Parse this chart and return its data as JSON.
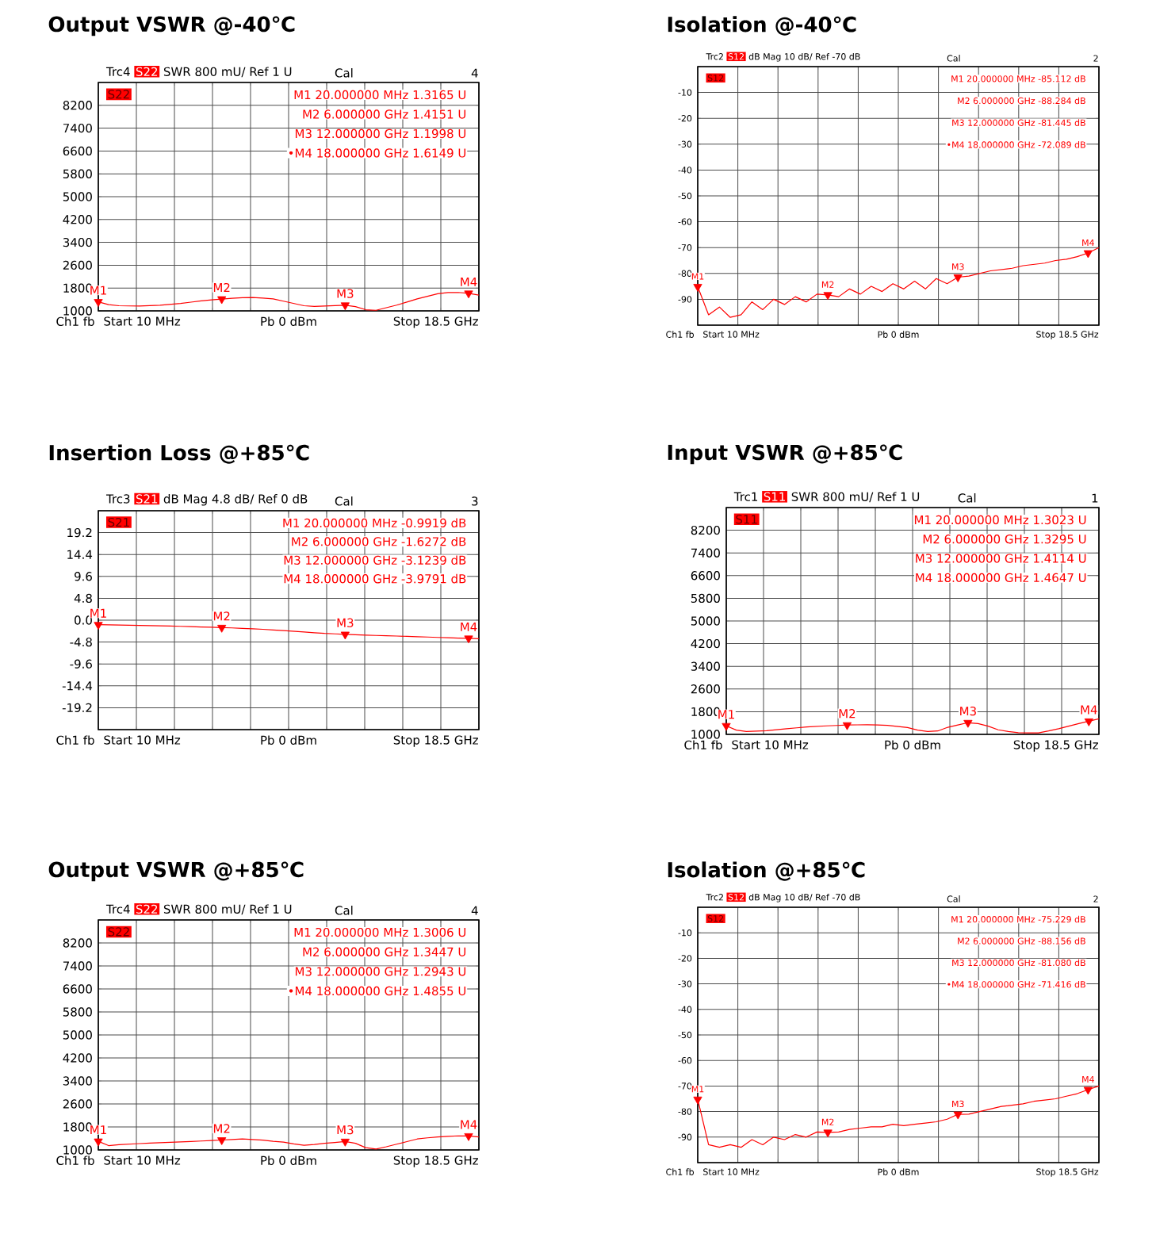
{
  "chart_data": [
    {
      "type": "line",
      "title": "Output VSWR @-40℃",
      "ylim": [
        1000,
        9000
      ],
      "grid": true,
      "categories": [
        null,
        null,
        null,
        null,
        null,
        null,
        null,
        null,
        null,
        null,
        null,
        null,
        null,
        null,
        null,
        null,
        null,
        null,
        null,
        null,
        null,
        null,
        null,
        null,
        null,
        null,
        null,
        null,
        null,
        null,
        null,
        null,
        null,
        null,
        null,
        null,
        null,
        null
      ],
      "yticks": [
        1000,
        1800,
        2600,
        3400,
        4200,
        5000,
        5800,
        6600,
        7400,
        8200,
        {
          "value": 9000,
          "label": null
        }
      ],
      "series": [
        {
          "color": "#ff0000",
          "values": [
            1316.5,
            1220,
            1180,
            1175,
            1170,
            1185,
            1200,
            1230,
            1260,
            1305,
            1350,
            1385,
            1415.1,
            1440,
            1460,
            1468,
            1450,
            1420,
            1340,
            1260,
            1180,
            1155,
            1170,
            1185,
            1199.8,
            1150,
            1040,
            1020,
            1110,
            1200,
            1310,
            1420,
            1510,
            1600,
            1640,
            1645,
            1614.9,
            1550
          ]
        },
        {
          "type": "scatter",
          "marker": "triangle",
          "color": "#ff0000",
          "values": [
            1316.5,
            null,
            null,
            null,
            null,
            null,
            null,
            null,
            null,
            null,
            null,
            null,
            1415.1,
            null,
            null,
            null,
            null,
            null,
            null,
            null,
            null,
            null,
            null,
            null,
            1199.8,
            null,
            null,
            null,
            null,
            null,
            null,
            null,
            null,
            null,
            null,
            null,
            1614.9,
            null
          ]
        }
      ],
      "annotations": [
        "Trc4",
        "S22",
        "SWR  800 mU/  Ref 1 U",
        "Cal",
        "4",
        "S22",
        "M1  20.000000 MHz  1.3165 U",
        "M2  6.000000 GHz  1.4151 U",
        "M3  12.000000 GHz  1.1998 U",
        "•M4  18.000000 GHz  1.6149 U",
        "Ch1  fb",
        "Start  10 MHz",
        "Pb  0 dBm",
        "Stop  18.5 GHz",
        "M1",
        "M2",
        "M3",
        "M4"
      ]
    },
    {
      "type": "line",
      "title": "Isolation @-40℃",
      "ylim": [
        -100,
        0
      ],
      "grid": true,
      "categories": [
        null,
        null,
        null,
        null,
        null,
        null,
        null,
        null,
        null,
        null,
        null,
        null,
        null,
        null,
        null,
        null,
        null,
        null,
        null,
        null,
        null,
        null,
        null,
        null,
        null,
        null,
        null,
        null,
        null,
        null,
        null,
        null,
        null,
        null,
        null,
        null,
        null,
        null
      ],
      "yticks": [
        {
          "value": -100,
          "label": null
        },
        -90,
        -80,
        -70,
        -60,
        -50,
        -40,
        -30,
        -20,
        -10,
        {
          "value": 0,
          "label": null
        }
      ],
      "series": [
        {
          "color": "#ff0000",
          "values": [
            -85.112,
            -96,
            -93,
            -97,
            -96,
            -91,
            -94,
            -90,
            -92,
            -89,
            -91,
            -88,
            -88.284,
            -89,
            -86,
            -88,
            -85,
            -87,
            -84,
            -86,
            -83,
            -86,
            -82,
            -84,
            -81.445,
            -81,
            -80,
            -79,
            -78.5,
            -78,
            -77,
            -76.5,
            -76,
            -75,
            -74.5,
            -73.5,
            -72.089,
            -70
          ]
        },
        {
          "type": "scatter",
          "marker": "triangle",
          "color": "#ff0000",
          "values": [
            -85.112,
            null,
            null,
            null,
            null,
            null,
            null,
            null,
            null,
            null,
            null,
            null,
            -88.284,
            null,
            null,
            null,
            null,
            null,
            null,
            null,
            null,
            null,
            null,
            null,
            -81.445,
            null,
            null,
            null,
            null,
            null,
            null,
            null,
            null,
            null,
            null,
            null,
            -72.089,
            null
          ]
        }
      ],
      "annotations": [
        "Trc2",
        "S12",
        "dB Mag  10 dB/  Ref -70 dB",
        "Cal",
        "2",
        "S12",
        "M1  20.000000 MHz  -85.112 dB",
        "M2  6.000000 GHz  -88.284 dB",
        "M3  12.000000 GHz  -81.445 dB",
        "•M4  18.000000 GHz  -72.089 dB",
        "Ch1  fb",
        "Start  10 MHz",
        "Pb  0 dBm",
        "Stop  18.5 GHz",
        "M1",
        "M2",
        "M3",
        "M4"
      ]
    },
    {
      "type": "line",
      "title": "Insertion Loss @+85℃",
      "ylim": [
        -24,
        24
      ],
      "grid": true,
      "categories": [
        null,
        null,
        null,
        null,
        null,
        null,
        null,
        null,
        null,
        null,
        null,
        null,
        null,
        null,
        null,
        null,
        null,
        null,
        null,
        null,
        null,
        null,
        null,
        null,
        null,
        null,
        null,
        null,
        null,
        null,
        null,
        null,
        null,
        null,
        null,
        null,
        null,
        null
      ],
      "yticks": [
        {
          "value": -24,
          "label": null
        },
        -19.2,
        -14.4,
        -9.6,
        -4.8,
        {
          "value": 0,
          "label": "0.0"
        },
        4.8,
        9.6,
        14.4,
        19.2,
        {
          "value": 24,
          "label": null
        }
      ],
      "series": [
        {
          "color": "#ff0000",
          "values": [
            -0.9919,
            -1.02,
            -1.05,
            -1.1,
            -1.15,
            -1.2,
            -1.25,
            -1.3,
            -1.35,
            -1.42,
            -1.5,
            -1.56,
            -1.6272,
            -1.7,
            -1.8,
            -1.9,
            -2.0,
            -2.15,
            -2.3,
            -2.45,
            -2.6,
            -2.75,
            -2.9,
            -3.0,
            -3.1239,
            -3.2,
            -3.3,
            -3.35,
            -3.4,
            -3.48,
            -3.55,
            -3.62,
            -3.7,
            -3.78,
            -3.85,
            -3.92,
            -3.9791,
            -4.05
          ]
        },
        {
          "type": "scatter",
          "marker": "triangle",
          "color": "#ff0000",
          "values": [
            -0.9919,
            null,
            null,
            null,
            null,
            null,
            null,
            null,
            null,
            null,
            null,
            null,
            -1.6272,
            null,
            null,
            null,
            null,
            null,
            null,
            null,
            null,
            null,
            null,
            null,
            -3.1239,
            null,
            null,
            null,
            null,
            null,
            null,
            null,
            null,
            null,
            null,
            null,
            -3.9791,
            null
          ]
        }
      ],
      "annotations": [
        "Trc3",
        "S21",
        "dB Mag  4.8 dB/  Ref 0 dB",
        "Cal",
        "3",
        "S21",
        "M1  20.000000 MHz  -0.9919 dB",
        "M2  6.000000 GHz  -1.6272 dB",
        "M3  12.000000 GHz  -3.1239 dB",
        "M4  18.000000 GHz  -3.9791 dB",
        "Ch1  fb",
        "Start  10 MHz",
        "Pb  0 dBm",
        "Stop  18.5 GHz",
        "M1",
        "M2",
        "M3",
        "M4"
      ]
    },
    {
      "type": "line",
      "title": "Input VSWR @+85℃",
      "ylim": [
        1000,
        9000
      ],
      "grid": true,
      "categories": [
        null,
        null,
        null,
        null,
        null,
        null,
        null,
        null,
        null,
        null,
        null,
        null,
        null,
        null,
        null,
        null,
        null,
        null,
        null,
        null,
        null,
        null,
        null,
        null,
        null,
        null,
        null,
        null,
        null,
        null,
        null,
        null,
        null,
        null,
        null,
        null,
        null,
        null
      ],
      "yticks": [
        1000,
        1800,
        2600,
        3400,
        4200,
        5000,
        5800,
        6600,
        7400,
        8200,
        {
          "value": 9000,
          "label": null
        }
      ],
      "series": [
        {
          "color": "#ff0000",
          "values": [
            1302.3,
            1150,
            1100,
            1115,
            1130,
            1165,
            1200,
            1230,
            1260,
            1280,
            1300,
            1315,
            1329.5,
            1335,
            1340,
            1330,
            1320,
            1280,
            1240,
            1150,
            1100,
            1120,
            1250,
            1330,
            1411.4,
            1380,
            1290,
            1160,
            1100,
            1060,
            1055,
            1050,
            1120,
            1200,
            1290,
            1380,
            1464.7,
            1550
          ]
        },
        {
          "type": "scatter",
          "marker": "triangle",
          "color": "#ff0000",
          "values": [
            1302.3,
            null,
            null,
            null,
            null,
            null,
            null,
            null,
            null,
            null,
            null,
            null,
            1329.5,
            null,
            null,
            null,
            null,
            null,
            null,
            null,
            null,
            null,
            null,
            null,
            1411.4,
            null,
            null,
            null,
            null,
            null,
            null,
            null,
            null,
            null,
            null,
            null,
            1464.7,
            null
          ]
        }
      ],
      "annotations": [
        "Trc1",
        "S11",
        "SWR  800 mU/  Ref 1 U",
        "Cal",
        "1",
        "S11",
        "M1  20.000000 MHz  1.3023 U",
        "M2  6.000000 GHz  1.3295 U",
        "M3  12.000000 GHz  1.4114 U",
        "M4  18.000000 GHz  1.4647 U",
        "Ch1  fb",
        "Start  10 MHz",
        "Pb  0 dBm",
        "Stop  18.5 GHz",
        "M1",
        "M2",
        "M3",
        "M4"
      ]
    },
    {
      "type": "line",
      "title": "Output VSWR @+85℃",
      "ylim": [
        1000,
        9000
      ],
      "grid": true,
      "categories": [
        null,
        null,
        null,
        null,
        null,
        null,
        null,
        null,
        null,
        null,
        null,
        null,
        null,
        null,
        null,
        null,
        null,
        null,
        null,
        null,
        null,
        null,
        null,
        null,
        null,
        null,
        null,
        null,
        null,
        null,
        null,
        null,
        null,
        null,
        null,
        null,
        null,
        null
      ],
      "yticks": [
        1000,
        1800,
        2600,
        3400,
        4200,
        5000,
        5800,
        6600,
        7400,
        8200,
        {
          "value": 9000,
          "label": null
        }
      ],
      "series": [
        {
          "color": "#ff0000",
          "values": [
            1300.6,
            1150,
            1180,
            1200,
            1220,
            1235,
            1250,
            1265,
            1280,
            1295,
            1310,
            1325,
            1344.7,
            1360,
            1380,
            1360,
            1340,
            1300,
            1270,
            1210,
            1160,
            1190,
            1230,
            1260,
            1294.3,
            1230,
            1080,
            1030,
            1110,
            1200,
            1290,
            1380,
            1420,
            1450,
            1470,
            1490,
            1485.5,
            1450
          ]
        },
        {
          "type": "scatter",
          "marker": "triangle",
          "color": "#ff0000",
          "values": [
            1300.6,
            null,
            null,
            null,
            null,
            null,
            null,
            null,
            null,
            null,
            null,
            null,
            1344.7,
            null,
            null,
            null,
            null,
            null,
            null,
            null,
            null,
            null,
            null,
            null,
            1294.3,
            null,
            null,
            null,
            null,
            null,
            null,
            null,
            null,
            null,
            null,
            null,
            1485.5,
            null
          ]
        }
      ],
      "annotations": [
        "Trc4",
        "S22",
        "SWR  800 mU/  Ref 1 U",
        "Cal",
        "4",
        "S22",
        "M1  20.000000 MHz  1.3006 U",
        "M2  6.000000 GHz  1.3447 U",
        "M3  12.000000 GHz  1.2943 U",
        "•M4  18.000000 GHz  1.4855 U",
        "Ch1  fb",
        "Start  10 MHz",
        "Pb  0 dBm",
        "Stop  18.5 GHz",
        "M1",
        "M2",
        "M3",
        "M4"
      ]
    },
    {
      "type": "line",
      "title": "Isolation @+85℃",
      "ylim": [
        -100,
        0
      ],
      "grid": true,
      "categories": [
        null,
        null,
        null,
        null,
        null,
        null,
        null,
        null,
        null,
        null,
        null,
        null,
        null,
        null,
        null,
        null,
        null,
        null,
        null,
        null,
        null,
        null,
        null,
        null,
        null,
        null,
        null,
        null,
        null,
        null,
        null,
        null,
        null,
        null,
        null,
        null,
        null,
        null
      ],
      "yticks": [
        {
          "value": -100,
          "label": null
        },
        -90,
        -80,
        -70,
        -60,
        -50,
        -40,
        -30,
        -20,
        -10,
        {
          "value": 0,
          "label": null
        }
      ],
      "series": [
        {
          "color": "#ff0000",
          "values": [
            -75.229,
            -93,
            -94,
            -93,
            -94,
            -91,
            -93,
            -90,
            -91,
            -89,
            -90,
            -88,
            -88.156,
            -88,
            -87,
            -86.5,
            -86,
            -86,
            -85,
            -85.5,
            -85,
            -84.5,
            -84,
            -83,
            -81.08,
            -81,
            -80,
            -79,
            -78,
            -77.5,
            -77,
            -76,
            -75.5,
            -75,
            -74,
            -73,
            -71.416,
            -70
          ]
        },
        {
          "type": "scatter",
          "marker": "triangle",
          "color": "#ff0000",
          "values": [
            -75.229,
            null,
            null,
            null,
            null,
            null,
            null,
            null,
            null,
            null,
            null,
            null,
            -88.156,
            null,
            null,
            null,
            null,
            null,
            null,
            null,
            null,
            null,
            null,
            null,
            -81.08,
            null,
            null,
            null,
            null,
            null,
            null,
            null,
            null,
            null,
            null,
            null,
            -71.416,
            null
          ]
        }
      ],
      "annotations": [
        "Trc2",
        "S12",
        "dB Mag  10 dB/  Ref -70 dB",
        "Cal",
        "2",
        "S12",
        "M1  20.000000 MHz  -75.229 dB",
        "M2  6.000000 GHz  -88.156 dB",
        "M3  12.000000 GHz  -81.080 dB",
        "•M4  18.000000 GHz  -71.416 dB",
        "Ch1  fb",
        "Start  10 MHz",
        "Pb  0 dBm",
        "Stop  18.5 GHz",
        "M1",
        "M2",
        "M3",
        "M4"
      ]
    }
  ]
}
